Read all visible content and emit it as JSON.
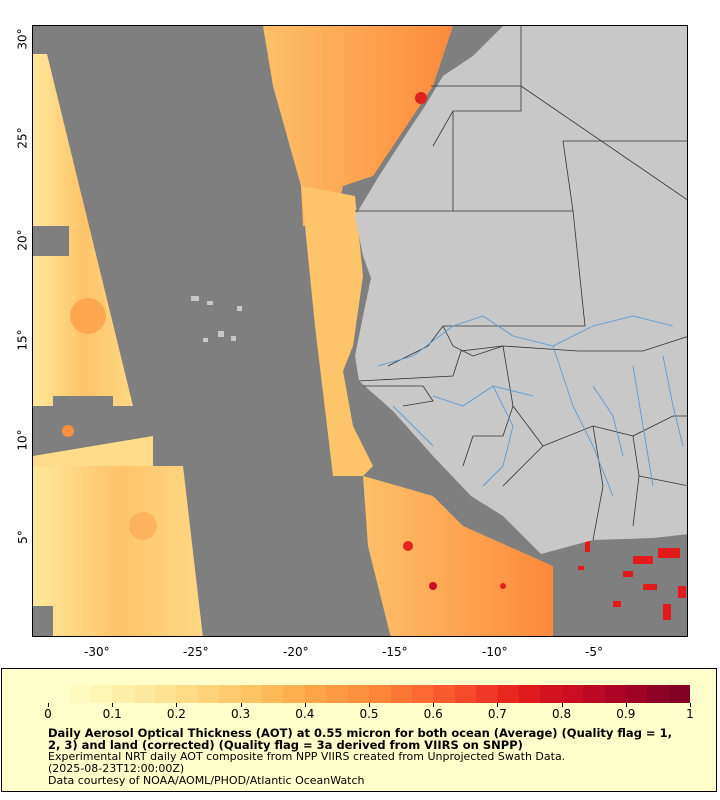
{
  "map": {
    "lat_labels": [
      "30°",
      "25°",
      "20°",
      "15°",
      "10°",
      "5°"
    ],
    "lon_labels": [
      "-30°",
      "-25°",
      "-20°",
      "-15°",
      "-10°",
      "-5°"
    ],
    "colors": {
      "no_data": "#7f7f7f",
      "land": "#c8c8c8",
      "border": "#333333",
      "river": "#5a9bd5"
    }
  },
  "legend": {
    "ticks": [
      "0",
      "0.1",
      "0.2",
      "0.3",
      "0.4",
      "0.5",
      "0.6",
      "0.7",
      "0.8",
      "0.9",
      "1"
    ],
    "palette": [
      "#ffffcc",
      "#fff3b0",
      "#ffe494",
      "#fed176",
      "#febd5c",
      "#fea446",
      "#fd8d3c",
      "#fc6a32",
      "#f44528",
      "#e31a1c",
      "#c80d22",
      "#a50026",
      "#800026"
    ],
    "title": "Daily Aerosol Optical Thickness (AOT) at 0.55 micron for both ocean (Average) (Quality flag = 1, 2, 3) and land (corrected) (Quality flag = 3a derived from VIIRS on SNPP)",
    "line1": "Experimental NRT daily AOT composite from NPP VIIRS created from Unprojected Swath Data.",
    "line2": "(2025-08-23T12:00:00Z)",
    "line3": "Data courtesy of NOAA/AOML/PHOD/Atlantic OceanWatch"
  }
}
